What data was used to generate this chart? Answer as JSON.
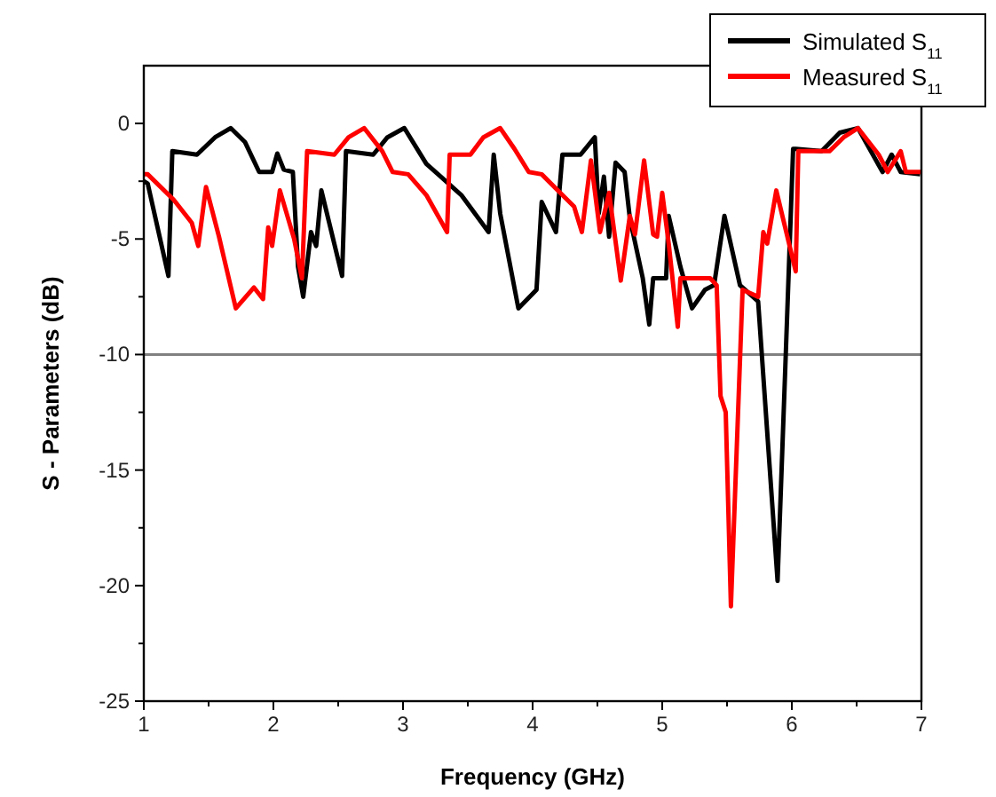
{
  "chart_data": {
    "type": "line",
    "xlabel": "Frequency (GHz)",
    "ylabel": "S - Parameters (dB)",
    "xlim": [
      1,
      7
    ],
    "ylim": [
      -25,
      2.5
    ],
    "xticks": [
      1,
      {
        "value": 1.5,
        "label": null
      },
      2,
      {
        "value": 2.5,
        "label": null
      },
      3,
      {
        "value": 3.5,
        "label": null
      },
      4,
      {
        "value": 4.5,
        "label": null
      },
      5,
      {
        "value": 5.5,
        "label": null
      },
      6,
      {
        "value": 6.5,
        "label": null
      },
      7
    ],
    "yticks": [
      -25,
      {
        "value": -22.5,
        "label": null
      },
      -20,
      {
        "value": -17.5,
        "label": null
      },
      -15,
      {
        "value": -12.5,
        "label": null
      },
      -10,
      {
        "value": -7.5,
        "label": null
      },
      -5,
      {
        "value": -2.5,
        "label": null
      },
      0
    ],
    "ref_lines": [
      {
        "axis": "y",
        "value": -10,
        "color": "#808080"
      }
    ],
    "legend": "top right",
    "grid": false,
    "marker": "none",
    "line_style": "solid",
    "series": [
      {
        "name": "Simulated S$_{11}$",
        "color": "#000000",
        "x": [
          1.0,
          1.03,
          1.19,
          1.22,
          1.41,
          1.55,
          1.67,
          1.78,
          1.89,
          1.99,
          2.03,
          2.08,
          2.15,
          2.19,
          2.23,
          2.29,
          2.33,
          2.37,
          2.53,
          2.56,
          2.77,
          2.88,
          3.01,
          3.18,
          3.29,
          3.45,
          3.66,
          3.7,
          3.75,
          3.89,
          4.03,
          4.07,
          4.18,
          4.23,
          4.37,
          4.48,
          4.51,
          4.55,
          4.59,
          4.64,
          4.71,
          4.75,
          4.85,
          4.9,
          4.93,
          4.96,
          5.03,
          5.05,
          5.14,
          5.23,
          5.33,
          5.4,
          5.48,
          5.6,
          5.74,
          5.89,
          5.95,
          6.01,
          6.03,
          6.23,
          6.37,
          6.51,
          6.7,
          6.77,
          6.84,
          6.99
        ],
        "values": [
          -2.5,
          -2.6,
          -6.6,
          -1.2,
          -1.35,
          -0.6,
          -0.2,
          -0.8,
          -2.1,
          -2.1,
          -1.3,
          -2.0,
          -2.1,
          -6.2,
          -7.5,
          -4.7,
          -5.3,
          -2.9,
          -6.6,
          -1.2,
          -1.35,
          -0.6,
          -0.2,
          -1.75,
          -2.3,
          -3.1,
          -4.7,
          -1.35,
          -3.9,
          -8.0,
          -7.2,
          -3.4,
          -4.7,
          -1.35,
          -1.35,
          -0.6,
          -3.9,
          -2.3,
          -4.9,
          -1.7,
          -2.1,
          -4.1,
          -6.7,
          -8.7,
          -6.7,
          -6.7,
          -6.7,
          -4.0,
          -6.2,
          -8.0,
          -7.2,
          -7.0,
          -4.0,
          -7.0,
          -7.7,
          -19.8,
          -10.5,
          -1.1,
          -1.1,
          -1.2,
          -0.4,
          -0.2,
          -2.1,
          -1.35,
          -2.1,
          -2.2
        ]
      },
      {
        "name": "Measured S$_{11}$",
        "color": "#ff0000",
        "x": [
          1.0,
          1.03,
          1.23,
          1.37,
          1.42,
          1.48,
          1.58,
          1.71,
          1.85,
          1.92,
          1.96,
          1.99,
          2.05,
          2.16,
          2.22,
          2.26,
          2.47,
          2.58,
          2.7,
          2.84,
          2.92,
          3.04,
          3.18,
          3.34,
          3.36,
          3.52,
          3.62,
          3.75,
          3.86,
          3.97,
          4.07,
          4.23,
          4.32,
          4.38,
          4.45,
          4.52,
          4.59,
          4.68,
          4.75,
          4.79,
          4.86,
          4.93,
          4.96,
          5.0,
          5.05,
          5.12,
          5.14,
          5.27,
          5.37,
          5.42,
          5.45,
          5.49,
          5.53,
          5.62,
          5.74,
          5.78,
          5.81,
          5.88,
          6.03,
          6.05,
          6.29,
          6.4,
          6.51,
          6.67,
          6.74,
          6.84,
          6.88,
          7.0
        ],
        "values": [
          -2.2,
          -2.2,
          -3.3,
          -4.3,
          -5.3,
          -2.75,
          -4.9,
          -8.0,
          -7.1,
          -7.6,
          -4.5,
          -5.3,
          -2.9,
          -5.0,
          -6.7,
          -1.2,
          -1.35,
          -0.6,
          -0.2,
          -1.2,
          -2.1,
          -2.2,
          -3.1,
          -4.7,
          -1.35,
          -1.35,
          -0.6,
          -0.2,
          -1.1,
          -2.1,
          -2.2,
          -3.1,
          -3.6,
          -4.7,
          -1.6,
          -4.7,
          -3.0,
          -6.8,
          -4.0,
          -4.8,
          -1.6,
          -4.8,
          -4.9,
          -3.0,
          -5.2,
          -8.8,
          -6.7,
          -6.7,
          -6.7,
          -7.0,
          -11.8,
          -12.5,
          -20.9,
          -7.2,
          -7.5,
          -4.7,
          -5.2,
          -2.9,
          -6.4,
          -1.2,
          -1.2,
          -0.6,
          -0.2,
          -1.35,
          -2.1,
          -1.2,
          -2.1,
          -2.1
        ]
      }
    ]
  }
}
